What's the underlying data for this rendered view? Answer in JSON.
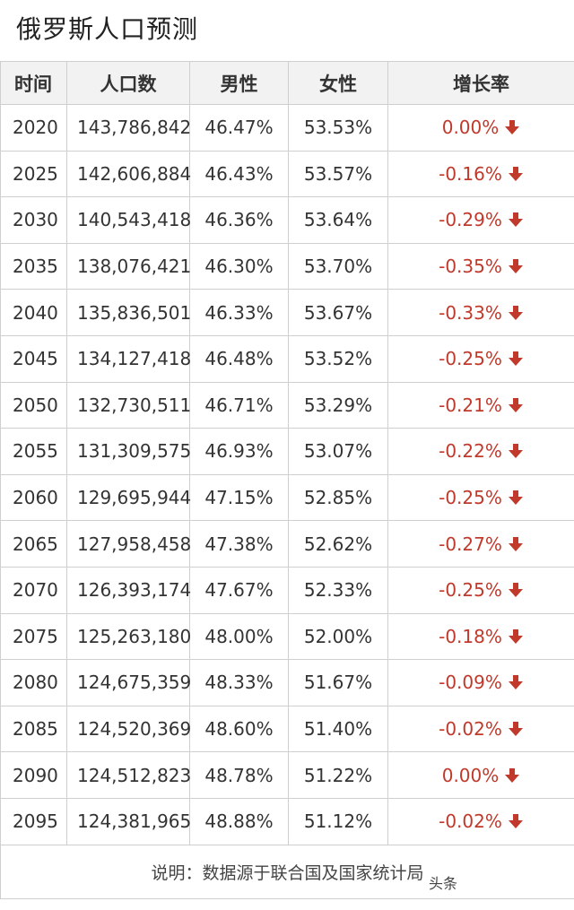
{
  "title": "俄罗斯人口预测",
  "headers": {
    "year": "时间",
    "population": "人口数",
    "male": "男性",
    "female": "女性",
    "growth": "增长率"
  },
  "rows": [
    {
      "year": "2020",
      "population": "143,786,842",
      "male": "46.47%",
      "female": "53.53%",
      "growth": "0.00%"
    },
    {
      "year": "2025",
      "population": "142,606,884",
      "male": "46.43%",
      "female": "53.57%",
      "growth": "-0.16%"
    },
    {
      "year": "2030",
      "population": "140,543,418",
      "male": "46.36%",
      "female": "53.64%",
      "growth": "-0.29%"
    },
    {
      "year": "2035",
      "population": "138,076,421",
      "male": "46.30%",
      "female": "53.70%",
      "growth": "-0.35%"
    },
    {
      "year": "2040",
      "population": "135,836,501",
      "male": "46.33%",
      "female": "53.67%",
      "growth": "-0.33%"
    },
    {
      "year": "2045",
      "population": "134,127,418",
      "male": "46.48%",
      "female": "53.52%",
      "growth": "-0.25%"
    },
    {
      "year": "2050",
      "population": "132,730,511",
      "male": "46.71%",
      "female": "53.29%",
      "growth": "-0.21%"
    },
    {
      "year": "2055",
      "population": "131,309,575",
      "male": "46.93%",
      "female": "53.07%",
      "growth": "-0.22%"
    },
    {
      "year": "2060",
      "population": "129,695,944",
      "male": "47.15%",
      "female": "52.85%",
      "growth": "-0.25%"
    },
    {
      "year": "2065",
      "population": "127,958,458",
      "male": "47.38%",
      "female": "52.62%",
      "growth": "-0.27%"
    },
    {
      "year": "2070",
      "population": "126,393,174",
      "male": "47.67%",
      "female": "52.33%",
      "growth": "-0.25%"
    },
    {
      "year": "2075",
      "population": "125,263,180",
      "male": "48.00%",
      "female": "52.00%",
      "growth": "-0.18%"
    },
    {
      "year": "2080",
      "population": "124,675,359",
      "male": "48.33%",
      "female": "51.67%",
      "growth": "-0.09%"
    },
    {
      "year": "2085",
      "population": "124,520,369",
      "male": "48.60%",
      "female": "51.40%",
      "growth": "-0.02%"
    },
    {
      "year": "2090",
      "population": "124,512,823",
      "male": "48.78%",
      "female": "51.22%",
      "growth": "0.00%"
    },
    {
      "year": "2095",
      "population": "124,381,965",
      "male": "48.88%",
      "female": "51.12%",
      "growth": "-0.02%"
    }
  ],
  "note": "说明：数据源于联合国及国家统计局",
  "watermark": "头条",
  "icons": {
    "growth_trend": "arrow-down-icon"
  },
  "colors": {
    "growth_text": "#c0392b",
    "arrow": "#c0392b",
    "header_bg": "#f2f2f2"
  }
}
